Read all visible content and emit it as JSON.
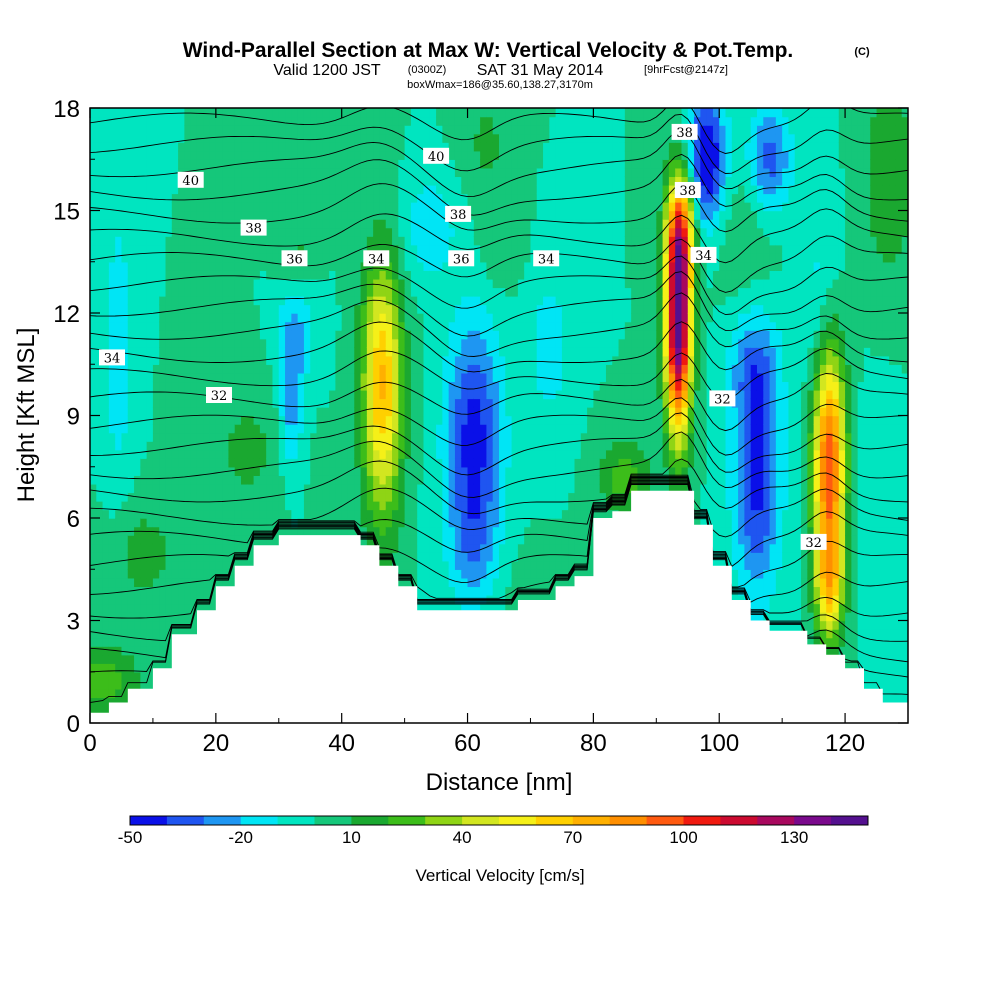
{
  "header": {
    "title": "Wind-Parallel Section at Max W: Vertical Velocity & Pot.Temp.",
    "copyright": "(C)",
    "valid_prefix": "Valid 1200 JST",
    "valid_zulu": "(0300Z)",
    "valid_date": "SAT 31 May 2014",
    "forecast": "[9hrFcst@2147z]",
    "box_info": "boxWmax=186@35.60,138.27,3170m"
  },
  "chart_data": {
    "type": "heatmap",
    "xlabel": "Distance [nm]",
    "ylabel": "Height [Kft MSL]",
    "xlim": [
      0,
      130
    ],
    "ylim": [
      0,
      18
    ],
    "x_ticks": [
      "0",
      "20",
      "40",
      "60",
      "80",
      "100",
      "120"
    ],
    "y_ticks": [
      "0",
      "3",
      "6",
      "9",
      "12",
      "15",
      "18"
    ],
    "colorbar": {
      "label": "Vertical Velocity [cm/s]",
      "tick_labels": [
        "-50",
        "-20",
        "10",
        "40",
        "70",
        "100",
        "130"
      ],
      "levels": [
        -50,
        -40,
        -30,
        -20,
        -10,
        0,
        10,
        20,
        30,
        40,
        50,
        60,
        70,
        80,
        90,
        100,
        110,
        120,
        130,
        140,
        150
      ],
      "colors": [
        "#0a10e8",
        "#1f55f0",
        "#1e96f2",
        "#00e5f5",
        "#00e5c0",
        "#15c77a",
        "#1aa830",
        "#3cbd1a",
        "#8fd415",
        "#d2e620",
        "#f5f018",
        "#ffd000",
        "#ffb000",
        "#ff8f00",
        "#ff5a10",
        "#f01a10",
        "#cc0a30",
        "#a8085e",
        "#7a0a8c",
        "#54108f"
      ]
    },
    "terrain": {
      "x": [
        0,
        3,
        6,
        10,
        13,
        17,
        20,
        23,
        26,
        30,
        33,
        36,
        40,
        43,
        46,
        49,
        52,
        55,
        60,
        65,
        68,
        71,
        74,
        77,
        80,
        83,
        86,
        90,
        93,
        96,
        99,
        102,
        105,
        108,
        111,
        114,
        117,
        120,
        123,
        126,
        130
      ],
      "y": [
        0.3,
        0.6,
        1.0,
        1.6,
        2.6,
        3.3,
        4.0,
        4.6,
        5.2,
        5.5,
        5.5,
        5.5,
        5.5,
        5.2,
        4.6,
        4.0,
        3.3,
        3.3,
        3.3,
        3.3,
        3.6,
        3.6,
        4.0,
        4.3,
        6.0,
        6.2,
        6.8,
        6.8,
        6.8,
        5.8,
        4.6,
        3.6,
        3.0,
        2.7,
        2.7,
        2.3,
        2.0,
        1.6,
        1.0,
        0.6,
        0.6
      ]
    },
    "isentrope_labels": [
      {
        "text": "40",
        "x": 16,
        "y": 15.9
      },
      {
        "text": "40",
        "x": 55,
        "y": 16.6
      },
      {
        "text": "38",
        "x": 26,
        "y": 14.5
      },
      {
        "text": "38",
        "x": 58.5,
        "y": 14.9
      },
      {
        "text": "38",
        "x": 94.5,
        "y": 17.3
      },
      {
        "text": "38",
        "x": 95,
        "y": 15.6
      },
      {
        "text": "36",
        "x": 32.5,
        "y": 13.6
      },
      {
        "text": "36",
        "x": 59,
        "y": 13.6
      },
      {
        "text": "34",
        "x": 45.5,
        "y": 13.6
      },
      {
        "text": "34",
        "x": 72.5,
        "y": 13.6
      },
      {
        "text": "34",
        "x": 97.5,
        "y": 13.7
      },
      {
        "text": "34",
        "x": 3.5,
        "y": 10.7
      },
      {
        "text": "32",
        "x": 20.5,
        "y": 9.6
      },
      {
        "text": "32",
        "x": 100.5,
        "y": 9.5
      },
      {
        "text": "32",
        "x": 115,
        "y": 5.3
      }
    ]
  }
}
